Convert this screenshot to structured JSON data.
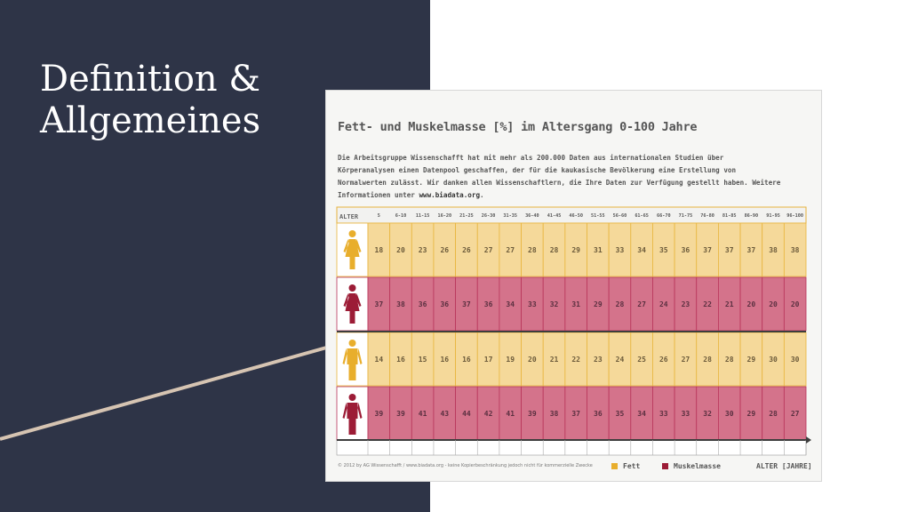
{
  "slide": {
    "title": "Definition &\nAllgemeines",
    "colors": {
      "panel": "#2e3447",
      "accent_line": "#d6c4b2"
    }
  },
  "chart": {
    "heading": "Fett- und Muskelmasse [%] im Altersgang 0-100 Jahre",
    "description": "Die Arbeitsgruppe Wissenschafft hat mit mehr als 200.000 Daten aus internationalen Studien über Körperanalysen einen Datenpool geschaffen, der für die kaukasische Bevölkerung eine Erstellung von Normalwerten zulässt. Wir danken allen Wissenschaftlern, die Ihre Daten zur Verfügung gestellt haben. Weitere Informationen unter ",
    "link_text": "www.biadata.org",
    "link_suffix": ".",
    "age_header": "ALTER",
    "copyright": "© 2012 by AG Wissenschafft / www.biadata.org - keine Kopierbeschränkung jedoch nicht für kommerzielle Zwecke",
    "legend_fett": "Fett",
    "legend_muskel": "Muskelmasse",
    "x_axis_label": "ALTER [JAHRE]"
  },
  "chart_data": {
    "type": "table",
    "title": "Fett- und Muskelmasse [%] im Altersgang 0-100 Jahre",
    "columns": [
      "5",
      "6-10",
      "11-15",
      "16-20",
      "21-25",
      "26-30",
      "31-35",
      "36-40",
      "41-45",
      "46-50",
      "51-55",
      "56-60",
      "61-65",
      "66-70",
      "71-75",
      "76-80",
      "81-85",
      "86-90",
      "91-95",
      "96-100"
    ],
    "rows": [
      {
        "group": "female",
        "metric": "Fett",
        "values": [
          18,
          20,
          23,
          26,
          26,
          27,
          27,
          28,
          28,
          29,
          31,
          33,
          34,
          35,
          36,
          37,
          37,
          37,
          38,
          38
        ]
      },
      {
        "group": "female",
        "metric": "Muskelmasse",
        "values": [
          37,
          38,
          36,
          36,
          37,
          36,
          34,
          33,
          32,
          31,
          29,
          28,
          27,
          24,
          23,
          22,
          21,
          20,
          20,
          20
        ]
      },
      {
        "group": "male",
        "metric": "Fett",
        "values": [
          14,
          16,
          15,
          16,
          16,
          17,
          19,
          20,
          21,
          22,
          23,
          24,
          25,
          26,
          27,
          28,
          28,
          29,
          30,
          30
        ]
      },
      {
        "group": "male",
        "metric": "Muskelmasse",
        "values": [
          39,
          39,
          41,
          43,
          44,
          42,
          41,
          39,
          38,
          37,
          36,
          35,
          34,
          33,
          33,
          32,
          30,
          29,
          28,
          27
        ]
      }
    ],
    "colors": {
      "fett_fill": "#f5d99a",
      "fett_border": "#e8b53d",
      "muskel_fill": "#d4738b",
      "muskel_border": "#b8355a",
      "fett_icon": "#e8ae2c",
      "muskel_icon": "#9c1c36"
    },
    "legend": [
      "Fett",
      "Muskelmasse"
    ],
    "xlabel": "ALTER [JAHRE]"
  }
}
